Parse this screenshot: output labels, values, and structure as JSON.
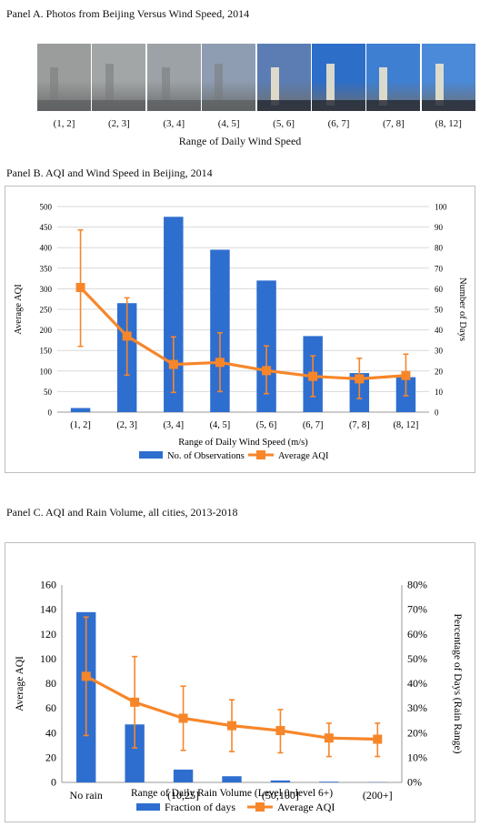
{
  "panelA": {
    "title": "Panel A. Photos from Beijing Versus Wind Speed, 2014",
    "ranges": [
      "(1, 2]",
      "(2, 3]",
      "(3, 4]",
      "(4, 5]",
      "(5, 6]",
      "(6, 7]",
      "(7, 8]",
      "(8, 12]"
    ],
    "xlabel": "Range of  Daily Wind Speed",
    "photo_colors": [
      "#9b9d9c",
      "#a3a6a7",
      "#9da2a6",
      "#8e9db1",
      "#5b7db3",
      "#2d6ec8",
      "#3f7fd2",
      "#4a8ad8"
    ]
  },
  "panelB": {
    "title": "Panel B. AQI and Wind Speed in Beijing, 2014",
    "chart_data": {
      "type": "bar",
      "categories": [
        "(1, 2]",
        "(2, 3]",
        "(3, 4]",
        "(4, 5]",
        "(5, 6]",
        "(6, 7]",
        "(7, 8]",
        "(8, 12]"
      ],
      "xlabel": "Range of  Daily Wind Speed (m/s)",
      "ylabel_left": "Average AQI",
      "ylabel_right": "Number of Days",
      "ylim_left": [
        0,
        500
      ],
      "yticks_left": [
        "0",
        "50",
        "100",
        "150",
        "200",
        "250",
        "300",
        "350",
        "400",
        "450",
        "500"
      ],
      "ylim_right": [
        0,
        100
      ],
      "yticks_right": [
        "0",
        "10",
        "20",
        "30",
        "40",
        "50",
        "60",
        "70",
        "80",
        "90",
        "100"
      ],
      "series": [
        {
          "name": "No. of Observations",
          "kind": "bar",
          "axis": "right",
          "color": "#2e6ecf",
          "values": [
            2,
            53,
            95,
            79,
            64,
            37,
            19,
            17
          ]
        },
        {
          "name": "Average AQI",
          "kind": "line",
          "axis": "left",
          "color": "#f7862a",
          "values": [
            303,
            185,
            116,
            121,
            101,
            87,
            81,
            89
          ],
          "err_low": [
            160,
            90,
            48,
            50,
            45,
            38,
            33,
            40
          ],
          "err_high": [
            443,
            278,
            183,
            193,
            161,
            137,
            131,
            141
          ]
        }
      ],
      "legend_position": "bottom",
      "grid": true
    }
  },
  "panelC": {
    "title": "Panel C. AQI and Rain Volume, all cities, 2013-2018",
    "chart_data": {
      "type": "bar",
      "categories": [
        "No rain",
        "",
        "(10,25]",
        "",
        "(50,100]",
        "",
        "(200+]"
      ],
      "xlabel": "Range of  Daily Rain Volume (Level 0~level 6+)",
      "ylabel_left": "Average AQI",
      "ylabel_right": "Percentage of Days (Rain Range)",
      "ylim_left": [
        0,
        160
      ],
      "yticks_left": [
        "0",
        "20",
        "40",
        "60",
        "80",
        "100",
        "120",
        "140",
        "160"
      ],
      "ylim_right": [
        0,
        80
      ],
      "yticks_right": [
        "0%",
        "10%",
        "20%",
        "30%",
        "40%",
        "50%",
        "60%",
        "70%",
        "80%"
      ],
      "series": [
        {
          "name": "Fraction of days",
          "kind": "bar",
          "axis": "right",
          "color": "#2e6ecf",
          "values": [
            69,
            23.5,
            5.2,
            2.5,
            0.8,
            0.3,
            0.1
          ]
        },
        {
          "name": "Average AQI",
          "kind": "line",
          "axis": "left",
          "color": "#f7862a",
          "values": [
            86,
            65,
            52,
            46,
            42,
            36,
            35
          ],
          "err_low": [
            38,
            28,
            26,
            25,
            24,
            21,
            21
          ],
          "err_high": [
            134,
            102,
            78,
            67,
            59,
            48,
            48
          ]
        }
      ],
      "legend_position": "bottom",
      "grid": false
    }
  }
}
